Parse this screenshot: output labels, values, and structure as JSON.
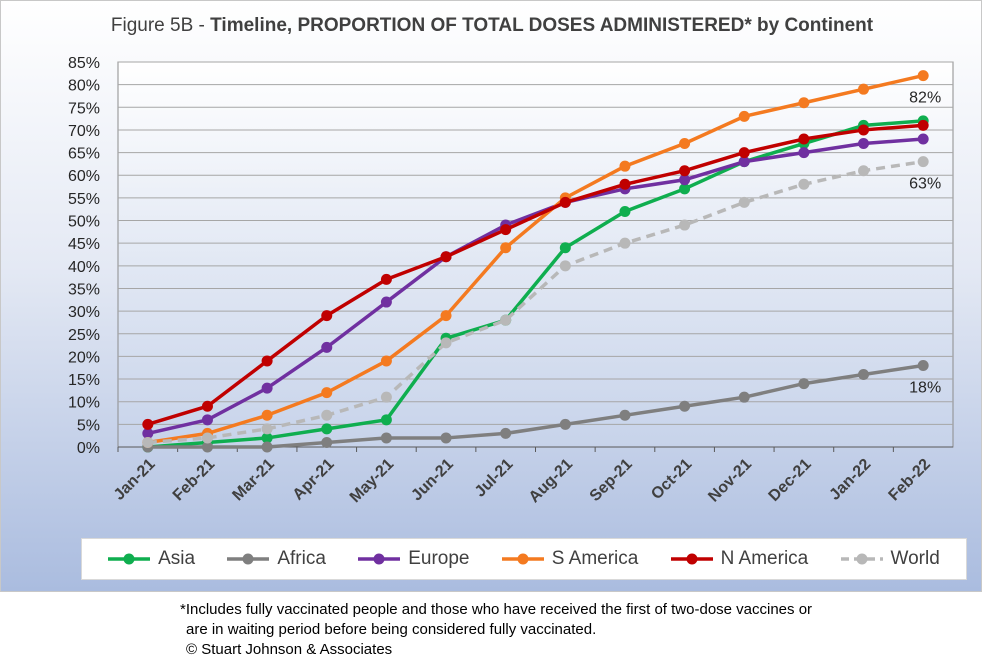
{
  "title_prefix": "Figure 5B - ",
  "title_main": "Timeline, PROPORTION OF TOTAL DOSES ADMINISTERED* by Continent",
  "footnote": {
    "line1": "*Includes fully vaccinated people and those who have received the first of two-dose vaccines or",
    "line2": "are in waiting period before being considered fully vaccinated.",
    "line3": "© Stuart Johnson & Associates"
  },
  "chart_data": {
    "type": "line",
    "title": "Figure 5B - Timeline, PROPORTION OF TOTAL DOSES ADMINISTERED* by Continent",
    "categories": [
      "Jan-21",
      "Feb-21",
      "Mar-21",
      "Apr-21",
      "May-21",
      "Jun-21",
      "Jul-21",
      "Aug-21",
      "Sep-21",
      "Oct-21",
      "Nov-21",
      "Dec-21",
      "Jan-22",
      "Feb-22"
    ],
    "ylim": [
      0,
      85
    ],
    "yticks": [
      "0%",
      "5%",
      "10%",
      "15%",
      "20%",
      "25%",
      "30%",
      "35%",
      "40%",
      "45%",
      "50%",
      "55%",
      "60%",
      "65%",
      "70%",
      "75%",
      "80%",
      "85%"
    ],
    "grid": "horizontal",
    "legend_position": "bottom",
    "series": [
      {
        "name": "Asia",
        "color": "#0fae4f",
        "dashed": false,
        "values": [
          0,
          1,
          2,
          4,
          6,
          24,
          28,
          44,
          52,
          57,
          63,
          67,
          71,
          72
        ]
      },
      {
        "name": "Africa",
        "color": "#7f7f7f",
        "dashed": false,
        "values": [
          0,
          0,
          0,
          1,
          2,
          2,
          3,
          5,
          7,
          9,
          11,
          14,
          16,
          18
        ]
      },
      {
        "name": "Europe",
        "color": "#7030a0",
        "dashed": false,
        "values": [
          3,
          6,
          13,
          22,
          32,
          42,
          49,
          54,
          57,
          59,
          63,
          65,
          67,
          68
        ]
      },
      {
        "name": "S America",
        "color": "#f47a20",
        "dashed": false,
        "values": [
          1,
          3,
          7,
          12,
          19,
          29,
          44,
          55,
          62,
          67,
          73,
          76,
          79,
          82
        ]
      },
      {
        "name": "N America",
        "color": "#c00000",
        "dashed": false,
        "values": [
          5,
          9,
          19,
          29,
          37,
          42,
          48,
          54,
          58,
          61,
          65,
          68,
          70,
          71
        ]
      },
      {
        "name": "World",
        "color": "#b8b8b8",
        "dashed": true,
        "values": [
          1,
          2,
          4,
          7,
          11,
          23,
          28,
          40,
          45,
          49,
          54,
          58,
          61,
          63
        ]
      }
    ],
    "annotations": [
      {
        "text": "82%",
        "series": "S America"
      },
      {
        "text": "63%",
        "series": "World"
      },
      {
        "text": "18%",
        "series": "Africa"
      }
    ]
  }
}
